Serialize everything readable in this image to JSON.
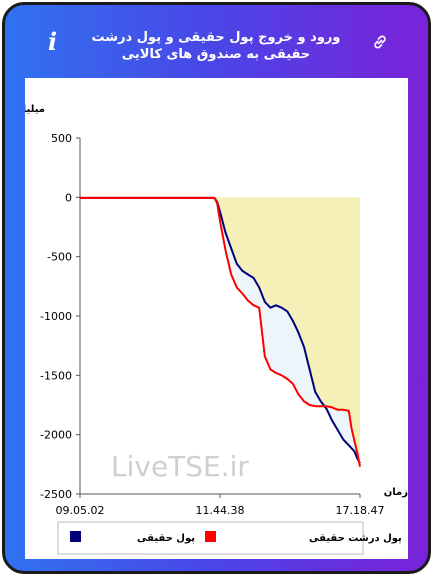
{
  "header": {
    "title": "ورود و خروج پول حقیقی و پول درشت حقیقی به صندوق های کالایی",
    "info_icon": "i"
  },
  "chart_data": {
    "type": "line",
    "ylabel": "میلیارد تومان",
    "xlabel": "زمان",
    "ylim": [
      -2500,
      500
    ],
    "yticks": [
      "500",
      "0",
      "-500",
      "-1000",
      "-1500",
      "-2000",
      "-2500"
    ],
    "xticks": [
      "09.05.02",
      "11.44.38",
      "17.18.47"
    ],
    "watermark": "LiveTSE.ir",
    "series": [
      {
        "name": "پول حقیقی",
        "color": "#00007a",
        "points": [
          [
            0,
            -5
          ],
          [
            0.26,
            -5
          ],
          [
            0.48,
            -5
          ],
          [
            0.49,
            -40
          ],
          [
            0.5,
            -120
          ],
          [
            0.52,
            -300
          ],
          [
            0.54,
            -430
          ],
          [
            0.56,
            -560
          ],
          [
            0.58,
            -620
          ],
          [
            0.6,
            -650
          ],
          [
            0.62,
            -680
          ],
          [
            0.64,
            -760
          ],
          [
            0.66,
            -880
          ],
          [
            0.68,
            -930
          ],
          [
            0.7,
            -910
          ],
          [
            0.72,
            -930
          ],
          [
            0.74,
            -960
          ],
          [
            0.76,
            -1040
          ],
          [
            0.78,
            -1140
          ],
          [
            0.8,
            -1260
          ],
          [
            0.82,
            -1450
          ],
          [
            0.84,
            -1640
          ],
          [
            0.86,
            -1720
          ],
          [
            0.88,
            -1780
          ],
          [
            0.9,
            -1880
          ],
          [
            0.92,
            -1960
          ],
          [
            0.94,
            -2040
          ],
          [
            0.96,
            -2090
          ],
          [
            0.98,
            -2140
          ],
          [
            0.99,
            -2200
          ],
          [
            1.0,
            -2240
          ]
        ]
      },
      {
        "name": "پول درشت حقیقی",
        "color": "#ff0000",
        "points": [
          [
            0,
            -5
          ],
          [
            0.26,
            -5
          ],
          [
            0.48,
            -5
          ],
          [
            0.49,
            -50
          ],
          [
            0.5,
            -200
          ],
          [
            0.52,
            -450
          ],
          [
            0.54,
            -650
          ],
          [
            0.56,
            -760
          ],
          [
            0.58,
            -810
          ],
          [
            0.6,
            -870
          ],
          [
            0.62,
            -910
          ],
          [
            0.64,
            -930
          ],
          [
            0.66,
            -1340
          ],
          [
            0.68,
            -1450
          ],
          [
            0.7,
            -1480
          ],
          [
            0.72,
            -1500
          ],
          [
            0.74,
            -1530
          ],
          [
            0.76,
            -1570
          ],
          [
            0.78,
            -1660
          ],
          [
            0.8,
            -1720
          ],
          [
            0.82,
            -1750
          ],
          [
            0.84,
            -1760
          ],
          [
            0.86,
            -1760
          ],
          [
            0.88,
            -1760
          ],
          [
            0.9,
            -1770
          ],
          [
            0.92,
            -1790
          ],
          [
            0.94,
            -1790
          ],
          [
            0.96,
            -1800
          ],
          [
            0.97,
            -1950
          ],
          [
            0.98,
            -2050
          ],
          [
            0.99,
            -2150
          ],
          [
            1.0,
            -2270
          ]
        ]
      }
    ],
    "legend": [
      "پول حقیقی",
      "پول درشت حقیقی"
    ],
    "colors": {
      "series1": "#00007a",
      "series2": "#ff0000",
      "fill_area": "#f4f0b8",
      "fill_between": "#e6f0f8"
    }
  }
}
